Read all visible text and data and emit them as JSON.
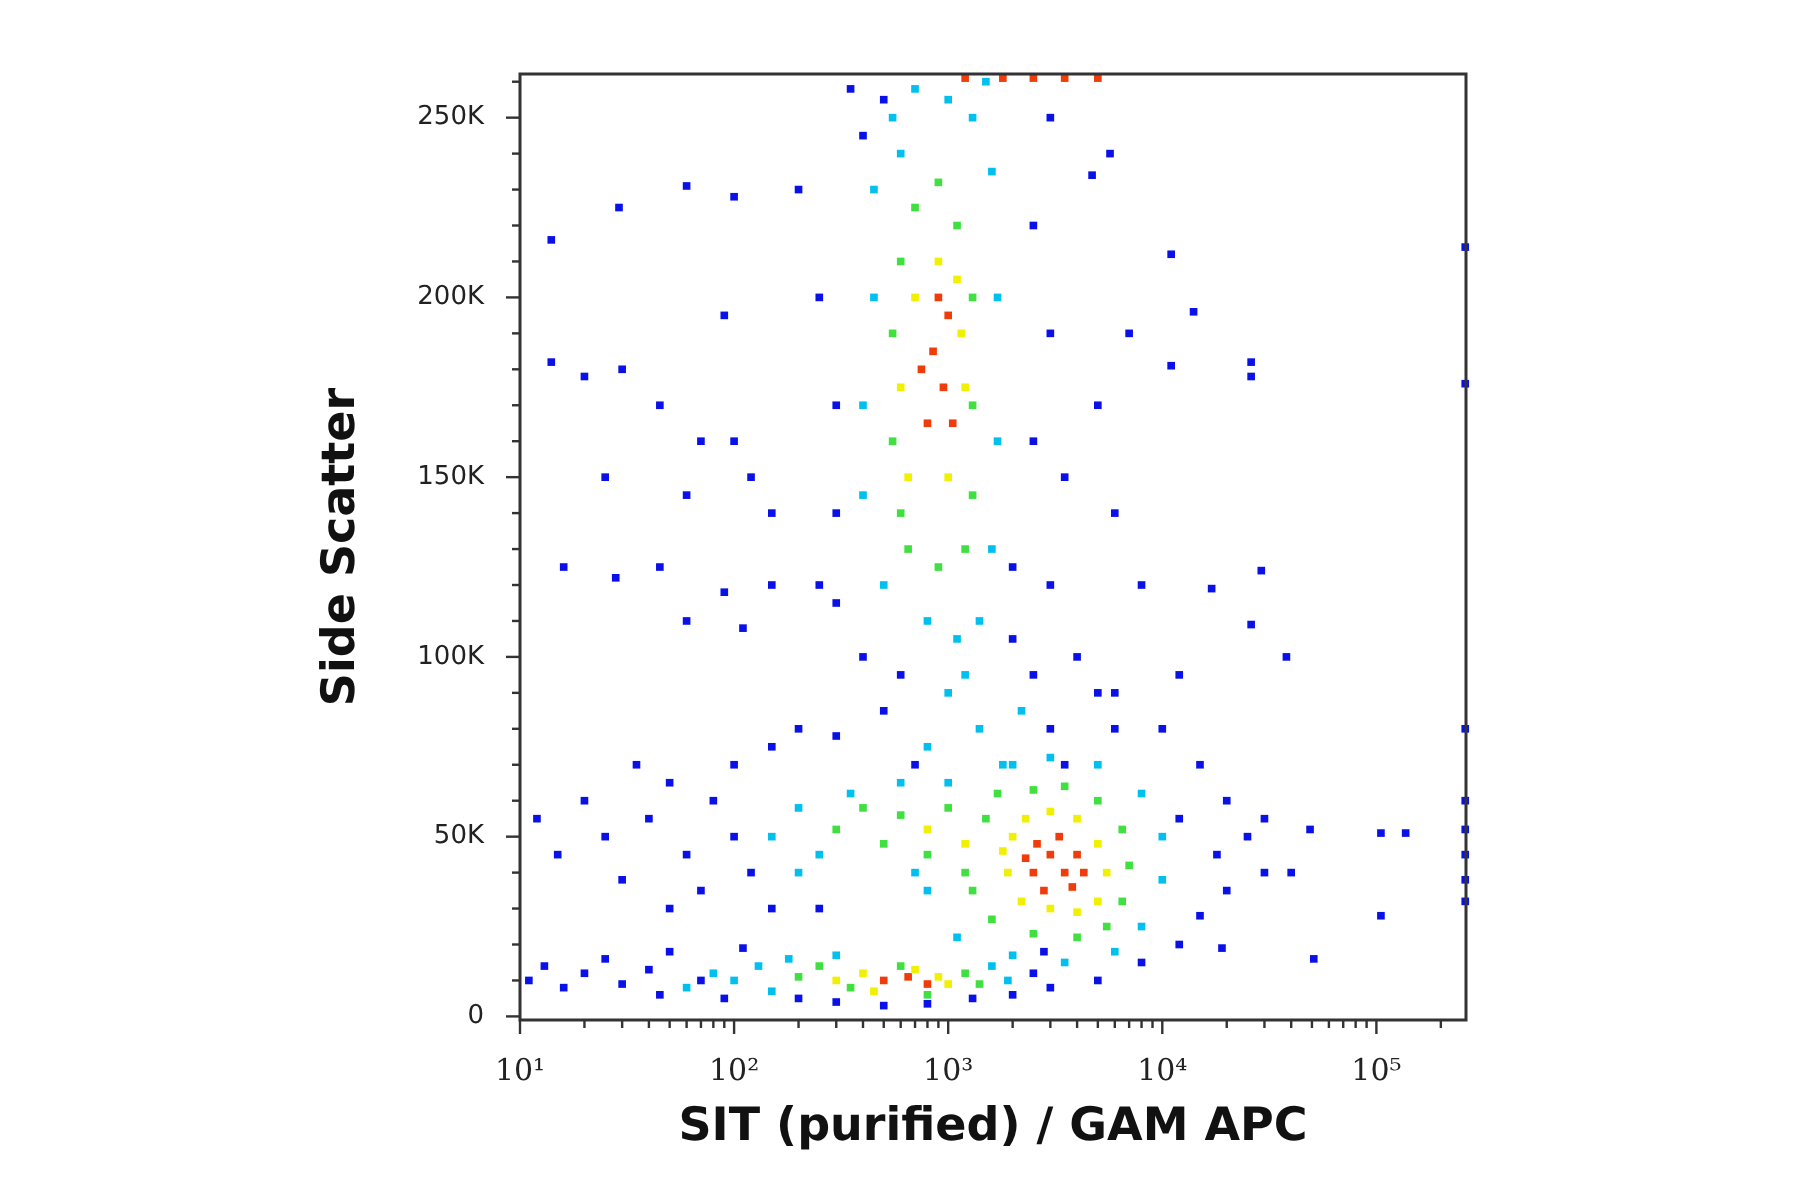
{
  "chart_data": {
    "type": "scatter",
    "xlabel": "SIT (purified) / GAM APC",
    "ylabel": "Side Scatter",
    "log": "x",
    "marker": "square",
    "xlim": [
      10,
      262144
    ],
    "ylim": [
      -1000,
      262144
    ],
    "xticks": [
      {
        "value": 10,
        "label": "10¹"
      },
      {
        "value": 20,
        "label": null
      },
      {
        "value": 30,
        "label": null
      },
      {
        "value": 40,
        "label": null
      },
      {
        "value": 50,
        "label": null
      },
      {
        "value": 60,
        "label": null
      },
      {
        "value": 70,
        "label": null
      },
      {
        "value": 80,
        "label": null
      },
      {
        "value": 90,
        "label": null
      },
      {
        "value": 100,
        "label": "10²"
      },
      {
        "value": 200,
        "label": null
      },
      {
        "value": 300,
        "label": null
      },
      {
        "value": 400,
        "label": null
      },
      {
        "value": 500,
        "label": null
      },
      {
        "value": 600,
        "label": null
      },
      {
        "value": 700,
        "label": null
      },
      {
        "value": 800,
        "label": null
      },
      {
        "value": 900,
        "label": null
      },
      {
        "value": 1000,
        "label": "10³"
      },
      {
        "value": 2000,
        "label": null
      },
      {
        "value": 3000,
        "label": null
      },
      {
        "value": 4000,
        "label": null
      },
      {
        "value": 5000,
        "label": null
      },
      {
        "value": 6000,
        "label": null
      },
      {
        "value": 7000,
        "label": null
      },
      {
        "value": 8000,
        "label": null
      },
      {
        "value": 9000,
        "label": null
      },
      {
        "value": 10000,
        "label": "10⁴"
      },
      {
        "value": 20000,
        "label": null
      },
      {
        "value": 30000,
        "label": null
      },
      {
        "value": 40000,
        "label": null
      },
      {
        "value": 50000,
        "label": null
      },
      {
        "value": 60000,
        "label": null
      },
      {
        "value": 70000,
        "label": null
      },
      {
        "value": 80000,
        "label": null
      },
      {
        "value": 90000,
        "label": null
      },
      {
        "value": 100000,
        "label": "10⁵"
      },
      {
        "value": 200000,
        "label": null
      }
    ],
    "yticks": [
      0,
      {
        "value": 10000,
        "label": null
      },
      {
        "value": 20000,
        "label": null
      },
      {
        "value": 30000,
        "label": null
      },
      {
        "value": 40000,
        "label": null
      },
      {
        "value": 50000,
        "label": "50K"
      },
      {
        "value": 60000,
        "label": null
      },
      {
        "value": 70000,
        "label": null
      },
      {
        "value": 80000,
        "label": null
      },
      {
        "value": 90000,
        "label": null
      },
      {
        "value": 100000,
        "label": "100K"
      },
      {
        "value": 110000,
        "label": null
      },
      {
        "value": 120000,
        "label": null
      },
      {
        "value": 130000,
        "label": null
      },
      {
        "value": 140000,
        "label": null
      },
      {
        "value": 150000,
        "label": "150K"
      },
      {
        "value": 160000,
        "label": null
      },
      {
        "value": 170000,
        "label": null
      },
      {
        "value": 180000,
        "label": null
      },
      {
        "value": 190000,
        "label": null
      },
      {
        "value": 200000,
        "label": "200K"
      },
      {
        "value": 210000,
        "label": null
      },
      {
        "value": 220000,
        "label": null
      },
      {
        "value": 230000,
        "label": null
      },
      {
        "value": 240000,
        "label": null
      },
      {
        "value": 250000,
        "label": "250K"
      },
      {
        "value": 260000,
        "label": null
      }
    ],
    "series": [
      {
        "color": "#0a10e8",
        "x": [
          200,
          250,
          300,
          300,
          250,
          350,
          400,
          500,
          3000,
          2500,
          3000,
          2500,
          3500,
          3000,
          4000,
          5000,
          6000,
          14,
          14,
          29,
          60,
          100,
          20,
          30,
          45,
          70,
          90,
          120,
          11000,
          14000,
          26000,
          26000,
          11000,
          5700,
          4700,
          260000,
          260000,
          260000,
          260000,
          260000,
          260000,
          260000,
          260000,
          29000,
          17000,
          26000,
          38000,
          12000,
          49000,
          105000,
          137000,
          105000,
          51000,
          19000,
          15000,
          20000,
          25000,
          30000,
          20000,
          15000,
          12000,
          8000,
          5000,
          3000,
          10000,
          6000,
          12000,
          18000,
          40000,
          30000,
          12,
          15,
          20,
          25,
          30,
          40,
          50,
          60,
          70,
          80,
          100,
          100,
          120,
          150,
          150,
          50,
          35,
          200,
          300,
          250,
          11,
          13,
          16,
          20,
          25,
          30,
          40,
          45,
          50,
          70,
          90,
          110,
          200,
          300,
          500,
          800,
          1300,
          2000,
          2500,
          2800,
          400,
          500,
          600,
          700,
          2000,
          2500,
          3000,
          3500,
          300,
          2000,
          16,
          28,
          45,
          90,
          110,
          150,
          60,
          25,
          60,
          100,
          150,
          5000,
          6000,
          8000,
          7000
        ],
        "values": [
          230000,
          200000,
          170000,
          140000,
          120000,
          258000,
          245000,
          255000,
          250000,
          220000,
          190000,
          160000,
          150000,
          120000,
          100000,
          90000,
          80000,
          216000,
          182000,
          225000,
          231000,
          228000,
          178000,
          180000,
          170000,
          160000,
          195000,
          150000,
          212000,
          196000,
          182000,
          178000,
          181000,
          240000,
          234000,
          214000,
          176000,
          80000,
          60000,
          52000,
          45000,
          38000,
          32000,
          124000,
          119000,
          109000,
          100000,
          95000,
          52000,
          51000,
          51000,
          28000,
          16000,
          19000,
          70000,
          60000,
          50000,
          40000,
          35000,
          28000,
          20000,
          15000,
          10000,
          8000,
          80000,
          90000,
          55000,
          45000,
          40000,
          55000,
          55000,
          45000,
          60000,
          50000,
          38000,
          55000,
          65000,
          45000,
          35000,
          60000,
          50000,
          70000,
          40000,
          75000,
          30000,
          30000,
          70000,
          80000,
          78000,
          30000,
          10000,
          14000,
          8000,
          12000,
          16000,
          9000,
          13000,
          6000,
          18000,
          10000,
          5000,
          19000,
          5000,
          4000,
          3000,
          3500,
          5000,
          6000,
          12000,
          18000,
          100000,
          85000,
          95000,
          70000,
          105000,
          95000,
          80000,
          70000,
          115000,
          125000,
          125000,
          122000,
          125000,
          118000,
          108000,
          120000,
          110000,
          150000,
          145000,
          160000,
          140000,
          170000,
          140000,
          120000,
          190000
        ]
      },
      {
        "color": "#00c0f0",
        "x": [
          400,
          450,
          450,
          550,
          700,
          1000,
          1300,
          1600,
          1700,
          1700,
          1600,
          1400,
          1100,
          800,
          500,
          400,
          600,
          1500,
          1000,
          1400,
          1800,
          800,
          2200,
          1200,
          800,
          1000,
          2000,
          3000,
          5000,
          8000,
          10000,
          10000,
          8000,
          6000,
          3500,
          2000,
          1100,
          150,
          200,
          250,
          200,
          350,
          600,
          700,
          60,
          80,
          100,
          130,
          150,
          180,
          1600,
          1900,
          300
        ],
        "values": [
          170000,
          200000,
          230000,
          250000,
          258000,
          255000,
          250000,
          235000,
          200000,
          160000,
          130000,
          110000,
          105000,
          110000,
          120000,
          145000,
          240000,
          260000,
          90000,
          80000,
          70000,
          75000,
          85000,
          95000,
          35000,
          65000,
          70000,
          72000,
          70000,
          62000,
          50000,
          38000,
          25000,
          18000,
          15000,
          17000,
          22000,
          50000,
          58000,
          45000,
          40000,
          62000,
          65000,
          40000,
          8000,
          12000,
          10000,
          14000,
          7000,
          16000,
          14000,
          10000,
          17000
        ]
      },
      {
        "color": "#40e040",
        "x": [
          550,
          550,
          600,
          700,
          900,
          1100,
          1300,
          1300,
          1300,
          1200,
          900,
          650,
          600,
          1300,
          1500,
          1700,
          2500,
          3500,
          5000,
          6500,
          7000,
          6500,
          5500,
          4000,
          2500,
          1600,
          300,
          400,
          500,
          600,
          800,
          1000,
          1200,
          200,
          250,
          350,
          600,
          800,
          1200,
          1400
        ],
        "values": [
          160000,
          190000,
          210000,
          225000,
          232000,
          220000,
          200000,
          170000,
          145000,
          130000,
          125000,
          130000,
          140000,
          35000,
          55000,
          62000,
          63000,
          64000,
          60000,
          52000,
          42000,
          32000,
          25000,
          22000,
          23000,
          27000,
          52000,
          58000,
          48000,
          56000,
          45000,
          58000,
          40000,
          11000,
          14000,
          8000,
          14000,
          6000,
          12000,
          9000
        ]
      },
      {
        "color": "#f0f000",
        "x": [
          650,
          1000,
          1100,
          700,
          900,
          600,
          1200,
          1150,
          1900,
          2000,
          2300,
          3000,
          4000,
          5000,
          5500,
          5000,
          4000,
          3000,
          2200,
          1800,
          300,
          400,
          700,
          900,
          1000,
          450,
          800,
          1200
        ],
        "values": [
          150000,
          150000,
          205000,
          200000,
          210000,
          175000,
          175000,
          190000,
          40000,
          50000,
          55000,
          57000,
          55000,
          48000,
          40000,
          32000,
          29000,
          30000,
          32000,
          46000,
          10000,
          12000,
          13000,
          11000,
          9000,
          7000,
          52000,
          48000
        ]
      },
      {
        "color": "#f03c0a",
        "x": [
          800,
          950,
          850,
          1000,
          750,
          1050,
          900,
          2500,
          3000,
          3500,
          2800,
          3300,
          4000,
          2600,
          3800,
          4300,
          2300,
          500,
          650,
          800,
          1200,
          1800,
          2500,
          3500,
          5000
        ],
        "values": [
          165000,
          175000,
          185000,
          195000,
          180000,
          165000,
          200000,
          40000,
          45000,
          40000,
          35000,
          50000,
          45000,
          48000,
          36000,
          40000,
          44000,
          10000,
          11000,
          9000,
          261000,
          261000,
          261000,
          261000,
          261000
        ]
      }
    ]
  }
}
